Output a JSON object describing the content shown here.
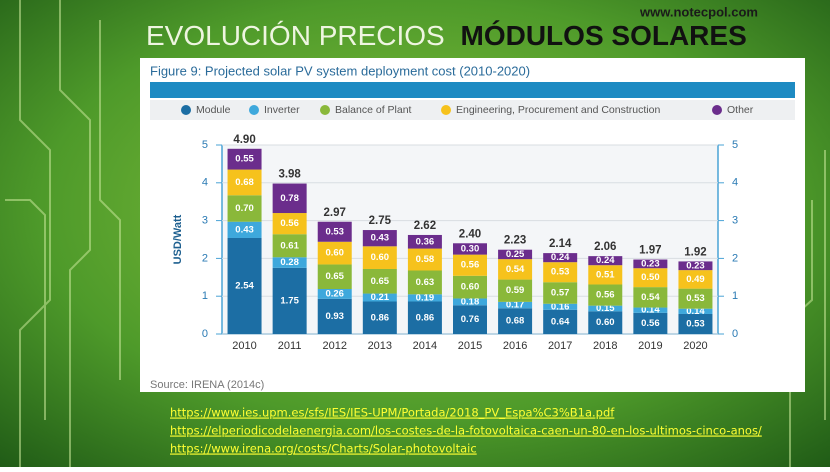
{
  "slide": {
    "title_part1": "EVOLUCIÓN PRECIOS",
    "title_part2": "MÓDULOS SOLARES",
    "website": "www.notecpol.com",
    "links": [
      "https://www.ies.upm.es/sfs/IES/IES-UPM/Portada/2018_PV_Espa%C3%B1a.pdf",
      "https://elperiodicodelaenergia.com/los-costes-de-la-fotovoltaica-caen-un-80-en-los-ultimos-cinco-anos/",
      "https://www.irena.org/costs/Charts/Solar-photovoltaic"
    ]
  },
  "chart_data": {
    "type": "stacked_bar",
    "title": "Figure 9: Projected solar PV system deployment cost (2010-2020)",
    "source": "Source: IRENA (2014c)",
    "y_label": "USD/Watt",
    "categories": [
      "2010",
      "2011",
      "2012",
      "2013",
      "2014",
      "2015",
      "2016",
      "2017",
      "2018",
      "2019",
      "2020"
    ],
    "series": [
      {
        "name": "Module",
        "color": "#1c6ea4",
        "values": [
          2.54,
          1.75,
          0.93,
          0.86,
          0.86,
          0.76,
          0.68,
          0.64,
          0.6,
          0.56,
          0.53
        ],
        "value_labels": [
          "2.54",
          "1.75",
          "0.93",
          "0.86",
          "0.86",
          "0.76",
          "0.68",
          "0.64",
          "0.60",
          "0.56",
          "0.53"
        ]
      },
      {
        "name": "Inverter",
        "color": "#3ea8dc",
        "values": [
          0.43,
          0.28,
          0.26,
          0.21,
          0.19,
          0.18,
          0.17,
          0.16,
          0.15,
          0.14,
          0.14
        ],
        "value_labels": [
          "0.43",
          "0.28",
          "0.26",
          "0.21",
          "0.19",
          "0.18",
          "0.17",
          "0.16",
          "0.15",
          "0.14",
          "0.14"
        ]
      },
      {
        "name": "Balance of Plant",
        "color": "#8ab83a",
        "values": [
          0.7,
          0.61,
          0.65,
          0.65,
          0.63,
          0.6,
          0.59,
          0.57,
          0.56,
          0.54,
          0.53
        ],
        "value_labels": [
          "0.70",
          "0.61",
          "0.65",
          "0.65",
          "0.63",
          "0.60",
          "0.59",
          "0.57",
          "0.56",
          "0.54",
          "0.53"
        ]
      },
      {
        "name": "Engineering, Procurement and Construction",
        "color": "#f6c21c",
        "values": [
          0.68,
          0.56,
          0.6,
          0.6,
          0.58,
          0.56,
          0.54,
          0.53,
          0.51,
          0.5,
          0.49
        ],
        "value_labels": [
          "0.68",
          "0.56",
          "0.60",
          "0.60",
          "0.58",
          "0.56",
          "0.54",
          "0.53",
          "0.51",
          "0.50",
          "0.49"
        ]
      },
      {
        "name": "Other",
        "color": "#6b2d8c",
        "values": [
          0.55,
          0.78,
          0.53,
          0.43,
          0.36,
          0.3,
          0.25,
          0.24,
          0.24,
          0.23,
          0.23
        ],
        "value_labels": [
          "0.55",
          "0.78",
          "0.53",
          "0.43",
          "0.36",
          "0.30",
          "0.25",
          "0.24",
          "0.24",
          "0.23",
          "0.23"
        ]
      }
    ],
    "totals": {
      "values": [
        4.9,
        3.98,
        2.97,
        2.75,
        2.62,
        2.4,
        2.23,
        2.14,
        2.06,
        1.97,
        1.92
      ],
      "value_labels": [
        "4.90",
        "3.98",
        "2.97",
        "2.75",
        "2.62",
        "2.40",
        "2.23",
        "2.14",
        "2.06",
        "1.97",
        "1.92"
      ]
    },
    "ylim": [
      0,
      5
    ],
    "yticks": [
      0,
      1,
      2,
      3,
      4,
      5
    ],
    "y2lim": [
      0,
      5
    ],
    "y2ticks": [
      0,
      1,
      2,
      3,
      4,
      5
    ],
    "grid": true
  }
}
